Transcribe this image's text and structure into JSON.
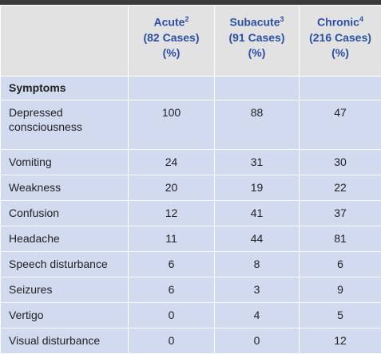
{
  "table": {
    "columns": [
      {
        "name": "Acute",
        "note": "2",
        "cases": "(82 Cases)",
        "unit": "(%)"
      },
      {
        "name": "Subacute",
        "note": "3",
        "cases": "(91 Cases)",
        "unit": "(%)"
      },
      {
        "name": "Chronic",
        "note": "4",
        "cases": "(216 Cases)",
        "unit": "(%)"
      }
    ],
    "section": "Symptoms",
    "rows": [
      [
        "Depressed consciousness",
        100,
        88,
        47
      ],
      [
        "Vomiting",
        24,
        31,
        30
      ],
      [
        "Weakness",
        20,
        19,
        22
      ],
      [
        "Confusion",
        12,
        41,
        37
      ],
      [
        "Headache",
        11,
        44,
        81
      ],
      [
        "Speech disturbance",
        6,
        8,
        6
      ],
      [
        "Seizures",
        6,
        3,
        9
      ],
      [
        "Vertigo",
        0,
        4,
        5
      ],
      [
        "Visual disturbance",
        0,
        0,
        12
      ]
    ]
  }
}
